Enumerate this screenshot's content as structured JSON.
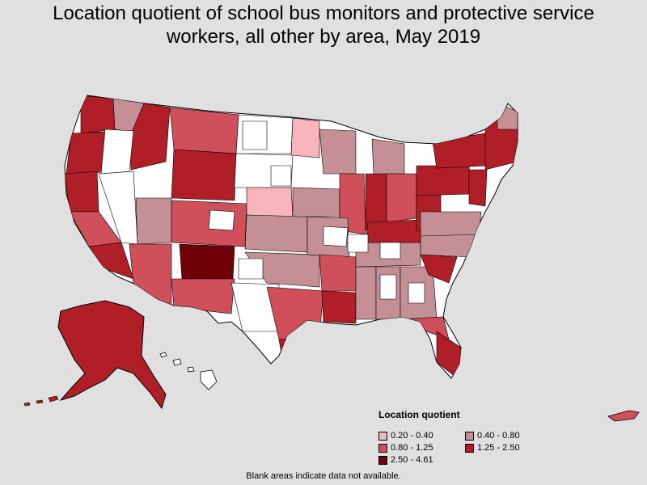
{
  "title_lines": [
    "Location quotient of school bus monitors and protective service",
    "workers, all other by area, May 2019"
  ],
  "legend": {
    "title": "Location quotient",
    "items": [
      {
        "label": "0.20 - 0.40",
        "color": "#f7b4ba"
      },
      {
        "label": "0.40 - 0.80",
        "color": "#c48f95"
      },
      {
        "label": "0.80 - 1.25",
        "color": "#cf4f5a"
      },
      {
        "label": "1.25 - 2.50",
        "color": "#b01f28"
      },
      {
        "label": "2.50 - 4.61",
        "color": "#6f0008"
      }
    ]
  },
  "footnote": "Blank areas indicate data not available.",
  "colors": {
    "background": "#e0e0e0",
    "no_data": "#ffffff",
    "border": "#000000"
  }
}
